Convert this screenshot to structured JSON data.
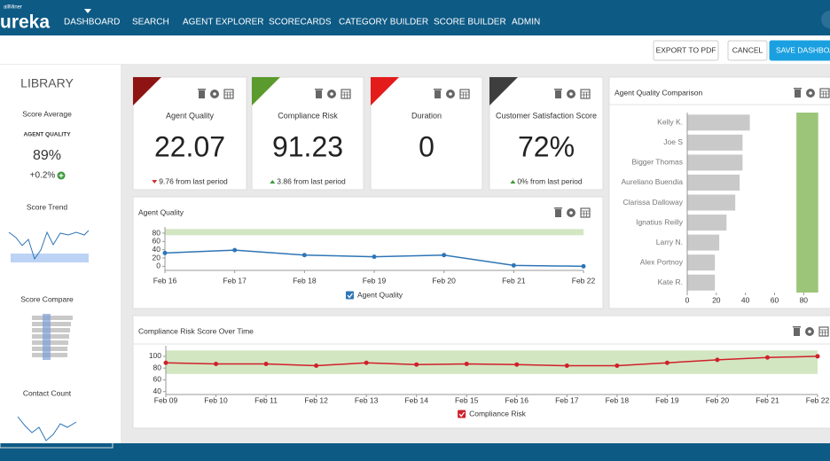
{
  "nav": {
    "logo_small": "allMiner",
    "logo": "ureka",
    "items": [
      "DASHBOARD",
      "SEARCH",
      "AGENT EXPLORER",
      "SCORECARDS",
      "CATEGORY BUILDER",
      "SCORE BUILDER",
      "ADMIN"
    ]
  },
  "toolbar": {
    "buttons": [
      "EXPORT TO PDF",
      "CANCEL",
      "SAVE DASHBOARD"
    ]
  },
  "library": {
    "title": "LIBRARY",
    "widgets": [
      "Score Average",
      "Score Trend",
      "Score Compare",
      "Contact Count"
    ],
    "score_average": {
      "label": "AGENT QUALITY",
      "value": "89%",
      "change": "+0.2%"
    }
  },
  "kpis": [
    {
      "title": "Agent Quality",
      "value": "22.07",
      "change": "9.76 from last period",
      "direction": "down",
      "color": "#8e1414"
    },
    {
      "title": "Compliance Risk",
      "value": "91.23",
      "change": "3.86 from last period",
      "direction": "up",
      "color": "#5b9a2c"
    },
    {
      "title": "Duration",
      "value": "0",
      "color": "#e31b1b"
    },
    {
      "title": "Customer Satisfaction Score",
      "value": "72%",
      "change": "0% from last period",
      "direction": "up",
      "color": "#3e3e3e"
    }
  ],
  "charts": [
    {
      "type": "line",
      "title": "Agent Quality",
      "categories": [
        "Feb 16",
        "Feb 17",
        "Feb 18",
        "Feb 19",
        "Feb 20",
        "Feb 21",
        "Feb 22"
      ],
      "series": [
        {
          "name": "Agent Quality",
          "color": "#2e75b6",
          "values": [
            32,
            39,
            27,
            23,
            27,
            2,
            0
          ]
        }
      ],
      "ylim": [
        -10,
        95
      ],
      "yticks": [
        0,
        20,
        40,
        60,
        80
      ],
      "band": [
        75,
        90
      ],
      "band_color": "#d3e6c2"
    },
    {
      "type": "hbar",
      "title": "Agent Quality Comparison",
      "categories": [
        "Kelly K.",
        "Joe S",
        "Bigger Thomas",
        "Aureliano Buendia",
        "Clarissa Dalloway",
        "Ignatius Reilly",
        "Larry N.",
        "Alex Portnoy",
        "Kate R."
      ],
      "values": [
        43,
        38,
        38,
        36,
        33,
        27,
        22,
        19,
        19
      ],
      "color": "#c9c9c9",
      "xlim": [
        0,
        92
      ],
      "xticks": [
        0,
        20,
        40,
        60,
        80
      ],
      "band": [
        75,
        90
      ],
      "band_color": "#9cc57a"
    },
    {
      "type": "line",
      "title": "Compliance Risk Score Over Time",
      "categories": [
        "Feb 09",
        "Feb 10",
        "Feb 11",
        "Feb 12",
        "Feb 13",
        "Feb 14",
        "Feb 15",
        "Feb 16",
        "Feb 17",
        "Feb 18",
        "Feb 19",
        "Feb 20",
        "Feb 21",
        "Feb 22"
      ],
      "series": [
        {
          "name": "Compliance Risk",
          "color": "#d0202a",
          "values": [
            89,
            87,
            87,
            84,
            89,
            86,
            87,
            86,
            84,
            84,
            89,
            94,
            98,
            100
          ]
        }
      ],
      "ylim": [
        35,
        118
      ],
      "yticks": [
        40,
        60,
        80,
        100
      ],
      "band": [
        70,
        110
      ],
      "band_color": "#d3e6c2"
    }
  ]
}
